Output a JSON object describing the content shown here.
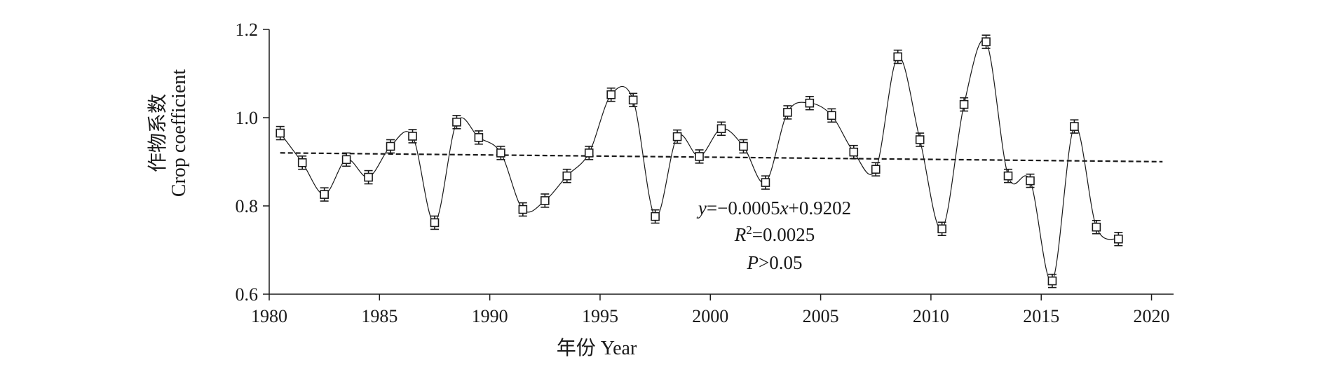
{
  "chart_data": {
    "type": "line",
    "x_axis": {
      "label": "年份 Year",
      "range": [
        1980,
        2021
      ],
      "ticks": [
        1980,
        1985,
        1990,
        1995,
        2000,
        2005,
        2010,
        2015,
        2020
      ],
      "tick_labels": [
        "1980",
        "1985",
        "1990",
        "1995",
        "2000",
        "2005",
        "2010",
        "2015",
        "2020"
      ]
    },
    "y_axis": {
      "label_line1": "作物系数",
      "label_line2": "Crop coefficient",
      "range": [
        0.6,
        1.2
      ],
      "ticks": [
        0.6,
        0.8,
        1.0,
        1.2
      ],
      "tick_labels": [
        "0.6",
        "0.8",
        "1.0",
        "1.2"
      ]
    },
    "grid": false,
    "series": [
      {
        "marker": "open-square",
        "line": "smooth-solid",
        "error_bars": 0.015,
        "x": [
          1980.5,
          1981.5,
          1982.5,
          1983.5,
          1984.5,
          1985.5,
          1986.5,
          1987.5,
          1988.5,
          1989.5,
          1990.5,
          1991.5,
          1992.5,
          1993.5,
          1994.5,
          1995.5,
          1996.5,
          1997.5,
          1998.5,
          1999.5,
          2000.5,
          2001.5,
          2002.5,
          2003.5,
          2004.5,
          2005.5,
          2006.5,
          2007.5,
          2008.5,
          2009.5,
          2010.5,
          2011.5,
          2012.5,
          2013.5,
          2014.5,
          2015.5,
          2016.5,
          2017.5,
          2018.5
        ],
        "y": [
          0.965,
          0.898,
          0.826,
          0.905,
          0.865,
          0.935,
          0.958,
          0.762,
          0.99,
          0.955,
          0.92,
          0.792,
          0.812,
          0.868,
          0.92,
          1.052,
          1.04,
          0.776,
          0.957,
          0.912,
          0.975,
          0.935,
          0.853,
          1.012,
          1.033,
          1.005,
          0.922,
          0.883,
          1.138,
          0.95,
          0.748,
          1.03,
          1.172,
          0.868,
          0.857,
          0.63,
          0.98,
          0.752,
          0.725
        ]
      }
    ],
    "trendline": {
      "style": "dashed",
      "slope": -0.0005,
      "intercept": 0.9202,
      "x_start": 1980.5,
      "x_end": 2020.5
    },
    "annotations": {
      "equation_y": "y",
      "equation_rest": "=−0.0005",
      "equation_x": "x",
      "equation_tail": "+0.9202",
      "r2_r": "R",
      "r2_sup": "2",
      "r2_value": "=0.0025",
      "p_p": "P",
      "p_value": ">0.05"
    }
  }
}
